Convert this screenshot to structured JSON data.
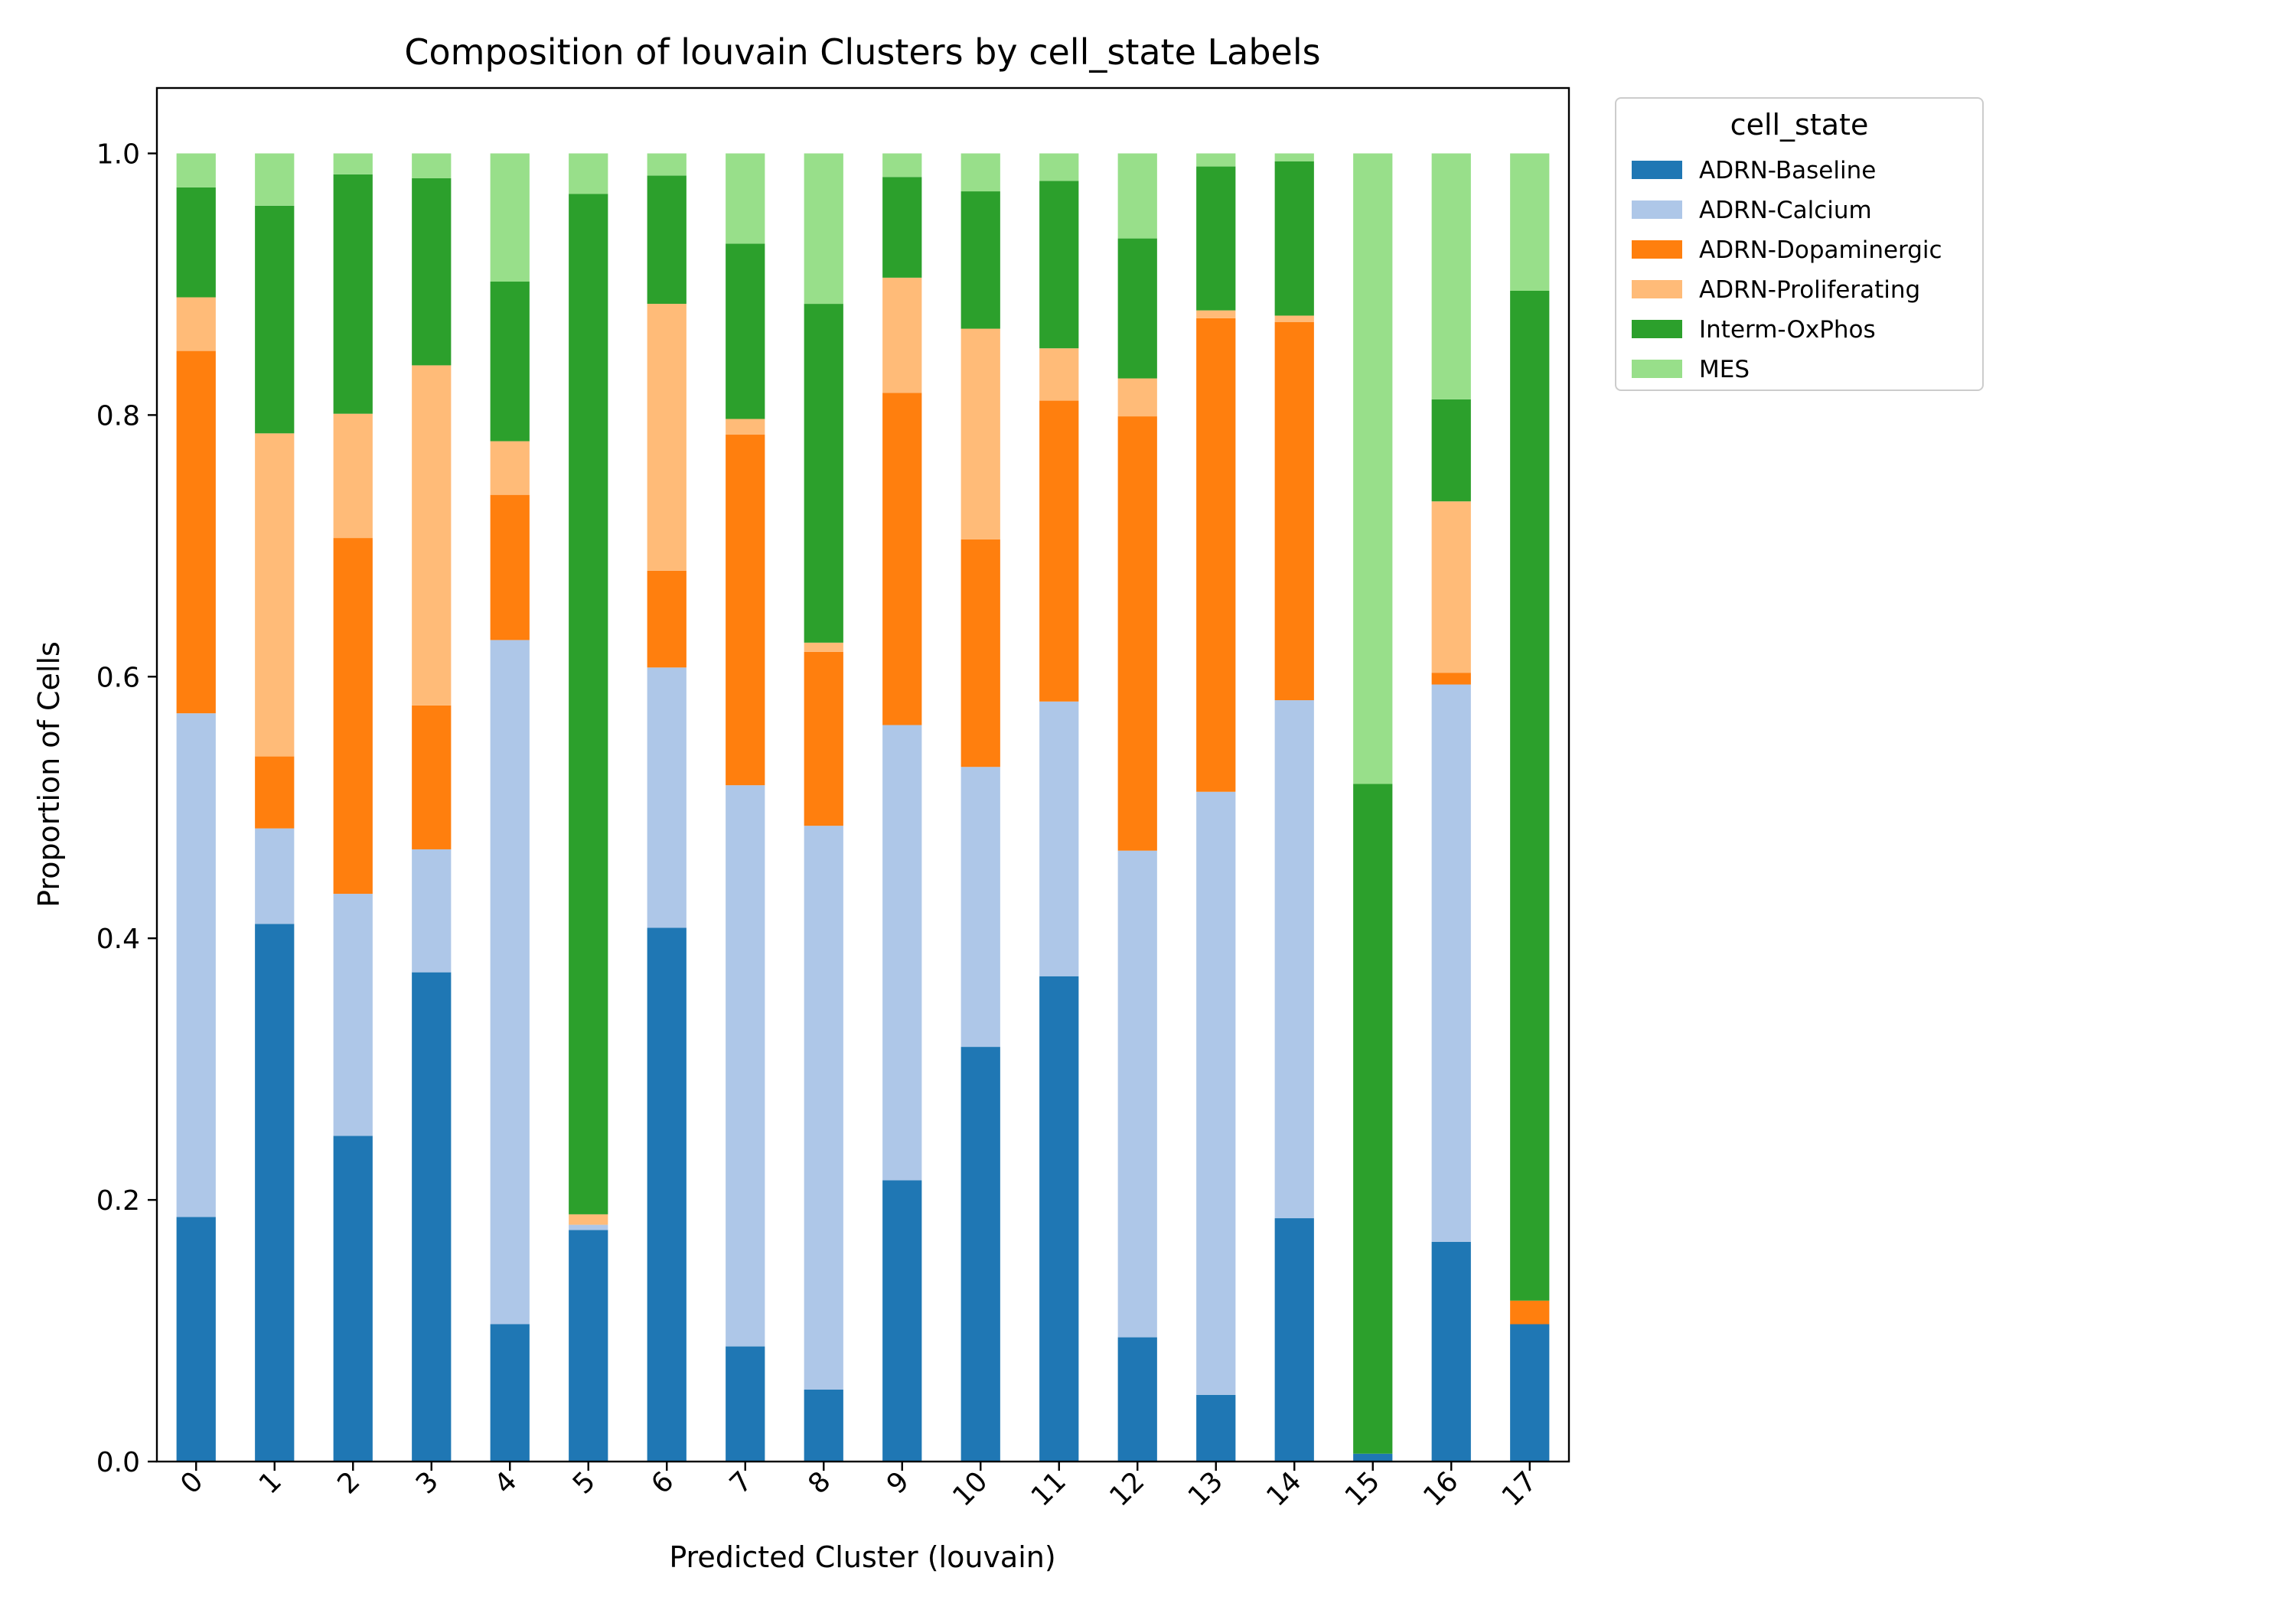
{
  "chart_data": {
    "type": "bar",
    "stacked": true,
    "title": "Composition of louvain Clusters by cell_state Labels",
    "xlabel": "Predicted Cluster (louvain)",
    "ylabel": "Proportion of Cells",
    "ylim": [
      0,
      1.05
    ],
    "yticks": [
      "0.0",
      "0.2",
      "0.4",
      "0.6",
      "0.8",
      "1.0"
    ],
    "categories": [
      "0",
      "1",
      "2",
      "3",
      "4",
      "5",
      "6",
      "7",
      "8",
      "9",
      "10",
      "11",
      "12",
      "13",
      "14",
      "15",
      "16",
      "17"
    ],
    "grid": false,
    "legend": {
      "title": "cell_state",
      "placement": "outside upper right"
    },
    "series": [
      {
        "name": "ADRN-Baseline",
        "color": "#1f77b4",
        "values": [
          0.187,
          0.411,
          0.249,
          0.374,
          0.105,
          0.177,
          0.408,
          0.088,
          0.055,
          0.215,
          0.317,
          0.371,
          0.095,
          0.051,
          0.186,
          0.006,
          0.168,
          0.105
        ]
      },
      {
        "name": "ADRN-Calcium",
        "color": "#aec7e8",
        "values": [
          0.385,
          0.073,
          0.185,
          0.094,
          0.523,
          0.004,
          0.199,
          0.429,
          0.431,
          0.348,
          0.214,
          0.21,
          0.372,
          0.461,
          0.396,
          0.0,
          0.426,
          0.0
        ]
      },
      {
        "name": "ADRN-Dopaminergic",
        "color": "#ff7f0e",
        "values": [
          0.277,
          0.055,
          0.272,
          0.11,
          0.111,
          0.0,
          0.074,
          0.268,
          0.133,
          0.254,
          0.174,
          0.23,
          0.332,
          0.362,
          0.289,
          0.0,
          0.009,
          0.018
        ]
      },
      {
        "name": "ADRN-Proliferating",
        "color": "#ffbb78",
        "values": [
          0.041,
          0.247,
          0.095,
          0.26,
          0.041,
          0.008,
          0.204,
          0.012,
          0.007,
          0.088,
          0.161,
          0.04,
          0.029,
          0.006,
          0.005,
          0.0,
          0.131,
          0.0
        ]
      },
      {
        "name": "Interm-OxPhos",
        "color": "#2ca02c",
        "values": [
          0.084,
          0.174,
          0.183,
          0.143,
          0.122,
          0.78,
          0.098,
          0.134,
          0.259,
          0.077,
          0.105,
          0.128,
          0.107,
          0.11,
          0.118,
          0.512,
          0.078,
          0.772
        ]
      },
      {
        "name": "MES",
        "color": "#98df8a",
        "values": [
          0.026,
          0.04,
          0.016,
          0.019,
          0.098,
          0.031,
          0.017,
          0.069,
          0.115,
          0.018,
          0.029,
          0.021,
          0.065,
          0.01,
          0.006,
          0.482,
          0.188,
          0.105
        ]
      }
    ]
  }
}
